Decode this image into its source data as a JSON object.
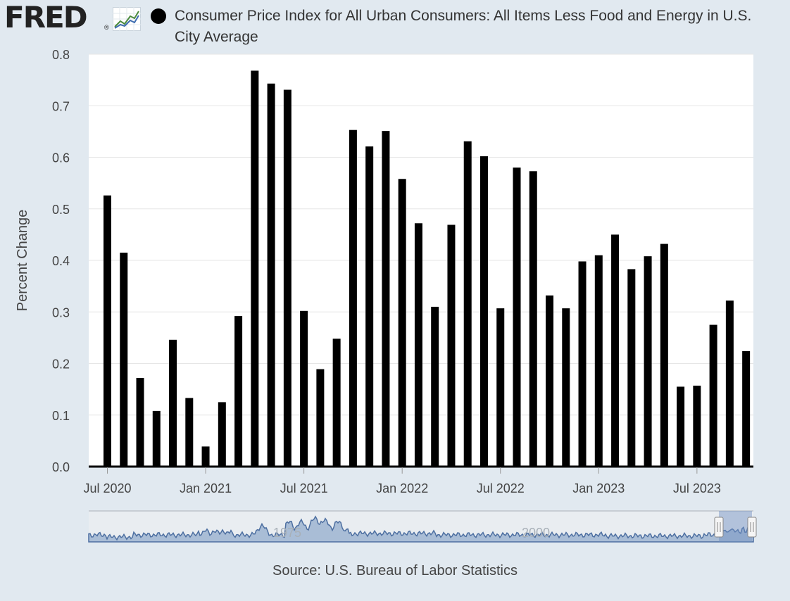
{
  "header": {
    "logo_text": "FRED",
    "logo_reg": "®",
    "logo_icon": "line-chart-icon",
    "title": "Consumer Price Index for All Urban Consumers: All Items Less Food and Energy in U.S. City Average"
  },
  "chart_data": {
    "type": "bar",
    "ylabel": "Percent Change",
    "xlabel": "",
    "ylim": [
      0,
      0.8
    ],
    "yticks": [
      "0.0",
      "0.1",
      "0.2",
      "0.3",
      "0.4",
      "0.5",
      "0.6",
      "0.7",
      "0.8"
    ],
    "grid": true,
    "color": "#000000",
    "x_tick_labels": [
      "Jul 2020",
      "Jan 2021",
      "Jul 2021",
      "Jan 2022",
      "Jul 2022",
      "Jan 2023",
      "Jul 2023"
    ],
    "categories": [
      "2020-07",
      "2020-08",
      "2020-09",
      "2020-10",
      "2020-11",
      "2020-12",
      "2021-01",
      "2021-02",
      "2021-03",
      "2021-04",
      "2021-05",
      "2021-06",
      "2021-07",
      "2021-08",
      "2021-09",
      "2021-10",
      "2021-11",
      "2021-12",
      "2022-01",
      "2022-02",
      "2022-03",
      "2022-04",
      "2022-05",
      "2022-06",
      "2022-07",
      "2022-08",
      "2022-09",
      "2022-10",
      "2022-11",
      "2022-12",
      "2023-01",
      "2023-02",
      "2023-03",
      "2023-04",
      "2023-05",
      "2023-06",
      "2023-07",
      "2023-08",
      "2023-09",
      "2023-10"
    ],
    "values": [
      0.526,
      0.415,
      0.172,
      0.108,
      0.246,
      0.133,
      0.039,
      0.125,
      0.292,
      0.768,
      0.743,
      0.731,
      0.302,
      0.189,
      0.248,
      0.653,
      0.621,
      0.651,
      0.558,
      0.472,
      0.31,
      0.469,
      0.631,
      0.602,
      0.307,
      0.58,
      0.573,
      0.332,
      0.307,
      0.398,
      0.41,
      0.45,
      0.383,
      0.408,
      0.432,
      0.155,
      0.157,
      0.275,
      0.322,
      0.224
    ]
  },
  "navigator": {
    "labels": [
      "1975",
      "2000"
    ]
  },
  "source": "Source: U.S. Bureau of Labor Statistics"
}
